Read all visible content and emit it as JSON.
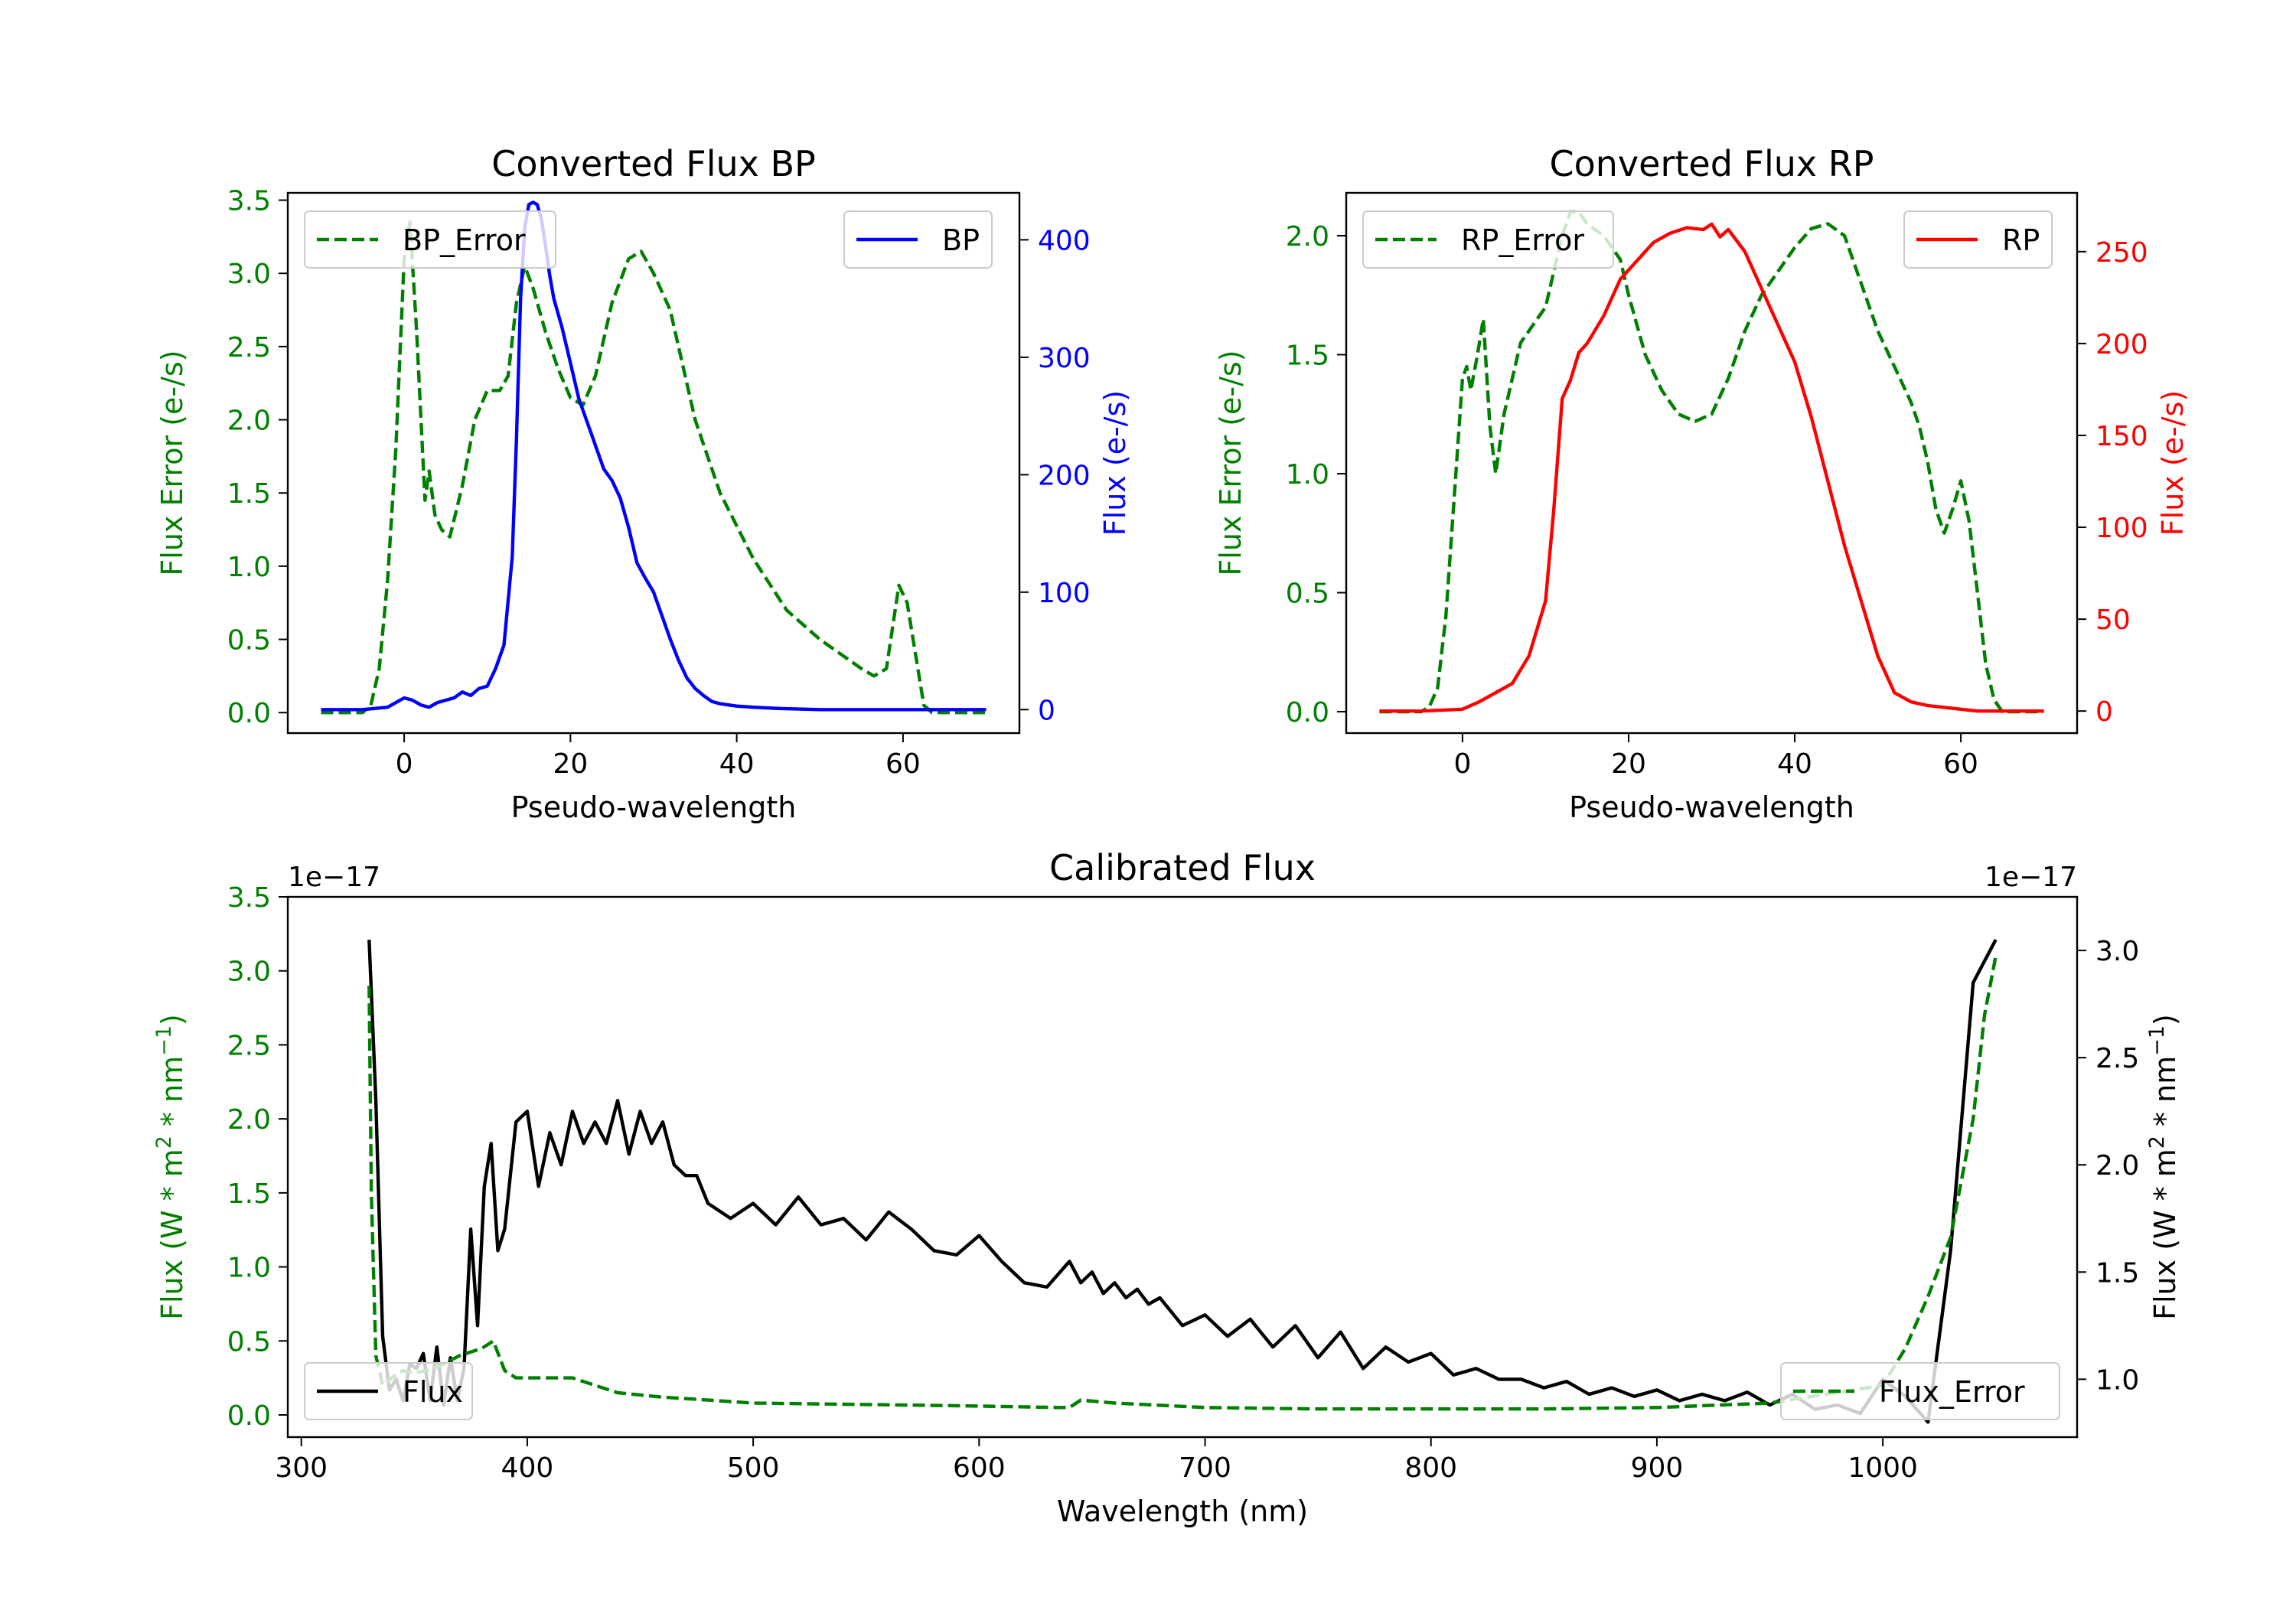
{
  "colors": {
    "error": "#008000",
    "bp": "#0000ff",
    "rp": "#ff0000",
    "flux": "#000000"
  },
  "chart_data": [
    {
      "id": "bp",
      "type": "line",
      "title": "Converted Flux BP",
      "xlabel": "Pseudo-wavelength",
      "ylabel_left": "Flux Error (e-/s)",
      "ylabel_right": "Flux (e-/s)",
      "xlim": [
        -14,
        74
      ],
      "x_ticks": [
        0,
        20,
        40,
        60
      ],
      "ylim_left": [
        -0.14,
        3.55
      ],
      "ylim_right": [
        -20,
        440
      ],
      "y_ticks_left": [
        "0.0",
        "0.5",
        "1.0",
        "1.5",
        "2.0",
        "2.5",
        "3.0",
        "3.5"
      ],
      "y_ticks_right": [
        0,
        100,
        200,
        300,
        400
      ],
      "legend_left": "BP_Error",
      "legend_right": "BP",
      "series": [
        {
          "name": "BP_Error",
          "axis": "left",
          "style": "dashed",
          "color_key": "error",
          "x": [
            -10,
            -5,
            -4,
            -3,
            -2,
            -1,
            0,
            0.7,
            1.5,
            2.5,
            3,
            3.7,
            4.5,
            5.5,
            7,
            8.5,
            10,
            11.5,
            12.5,
            13.5,
            14.5,
            15.5,
            17,
            18.5,
            20,
            21.5,
            23,
            25,
            27,
            28.5,
            30,
            32,
            35,
            38,
            42,
            46,
            50,
            55,
            56.5,
            58,
            59.5,
            60.5,
            61.5,
            62.5,
            63.5,
            65,
            70
          ],
          "y": [
            0,
            0,
            0.05,
            0.3,
            0.9,
            1.8,
            3.1,
            3.35,
            2.6,
            1.45,
            1.65,
            1.35,
            1.25,
            1.2,
            1.55,
            2.0,
            2.2,
            2.2,
            2.3,
            2.8,
            3.05,
            2.9,
            2.6,
            2.35,
            2.15,
            2.1,
            2.3,
            2.8,
            3.1,
            3.15,
            3.0,
            2.75,
            2.0,
            1.5,
            1.05,
            0.7,
            0.5,
            0.3,
            0.25,
            0.3,
            0.87,
            0.75,
            0.4,
            0.05,
            0,
            0,
            0
          ]
        },
        {
          "name": "BP",
          "axis": "right",
          "style": "solid",
          "color_key": "bp",
          "x": [
            -10,
            -5,
            -2,
            0,
            1,
            2,
            3,
            4,
            5,
            6,
            7,
            8,
            9,
            10,
            11,
            12,
            13,
            13.5,
            14,
            14.5,
            15,
            15.5,
            16,
            16.5,
            17,
            17.5,
            18,
            19,
            20,
            21,
            22,
            23,
            24,
            25,
            26,
            27,
            28,
            29,
            30,
            31,
            32,
            33,
            34,
            35,
            36,
            37,
            38,
            39,
            40,
            42,
            45,
            50,
            55,
            60,
            65,
            70
          ],
          "y": [
            0,
            0,
            2,
            10,
            8,
            4,
            2,
            6,
            8,
            10,
            15,
            12,
            18,
            20,
            35,
            55,
            130,
            230,
            350,
            410,
            430,
            432,
            430,
            418,
            395,
            370,
            350,
            325,
            295,
            265,
            245,
            225,
            205,
            195,
            180,
            155,
            125,
            112,
            100,
            80,
            60,
            42,
            27,
            18,
            12,
            7,
            5,
            4,
            3,
            2,
            1,
            0,
            0,
            0,
            0,
            0
          ]
        }
      ]
    },
    {
      "id": "rp",
      "type": "line",
      "title": "Converted Flux RP",
      "xlabel": "Pseudo-wavelength",
      "ylabel_left": "Flux Error (e-/s)",
      "ylabel_right": "Flux (e-/s)",
      "xlim": [
        -14,
        74
      ],
      "x_ticks": [
        0,
        20,
        40,
        60
      ],
      "ylim_left": [
        -0.09,
        2.18
      ],
      "ylim_right": [
        -12,
        282
      ],
      "y_ticks_left": [
        "0.0",
        "0.5",
        "1.0",
        "1.5",
        "2.0"
      ],
      "y_ticks_right": [
        0,
        50,
        100,
        150,
        200,
        250
      ],
      "legend_left": "RP_Error",
      "legend_right": "RP",
      "series": [
        {
          "name": "RP_Error",
          "axis": "left",
          "style": "dashed",
          "color_key": "error",
          "x": [
            -10,
            -5,
            -4,
            -3,
            -2,
            -1,
            0,
            0.5,
            1,
            1.8,
            2.5,
            3.3,
            4,
            5,
            6,
            7,
            8,
            9,
            10,
            11,
            12,
            13,
            14,
            15,
            17,
            19,
            20,
            22,
            24,
            26,
            28,
            30,
            32,
            34,
            36,
            38,
            40,
            42,
            44,
            46,
            48,
            50,
            52,
            54,
            55,
            56,
            57,
            58,
            59,
            60,
            61,
            62,
            63,
            64,
            65,
            70
          ],
          "y": [
            0,
            0,
            0.02,
            0.1,
            0.4,
            0.9,
            1.4,
            1.45,
            1.35,
            1.5,
            1.65,
            1.2,
            1.0,
            1.25,
            1.4,
            1.55,
            1.6,
            1.65,
            1.7,
            1.85,
            2.0,
            2.1,
            2.1,
            2.05,
            2.0,
            1.9,
            1.75,
            1.5,
            1.35,
            1.25,
            1.22,
            1.25,
            1.4,
            1.6,
            1.75,
            1.85,
            1.95,
            2.03,
            2.05,
            2.0,
            1.8,
            1.6,
            1.45,
            1.3,
            1.2,
            1.05,
            0.85,
            0.75,
            0.85,
            0.97,
            0.8,
            0.5,
            0.2,
            0.05,
            0,
            0
          ]
        },
        {
          "name": "RP",
          "axis": "right",
          "style": "solid",
          "color_key": "rp",
          "x": [
            -10,
            -5,
            0,
            2,
            4,
            6,
            8,
            10,
            11,
            12,
            13,
            14,
            15,
            17,
            19,
            21,
            23,
            25,
            27,
            29,
            30,
            31,
            32,
            34,
            36,
            38,
            40,
            42,
            44,
            46,
            48,
            50,
            52,
            54,
            56,
            58,
            60,
            62,
            65,
            70
          ],
          "y": [
            0,
            0,
            1,
            5,
            10,
            15,
            30,
            60,
            110,
            170,
            180,
            195,
            200,
            215,
            235,
            245,
            255,
            260,
            263,
            262,
            265,
            258,
            262,
            250,
            230,
            210,
            190,
            160,
            125,
            90,
            60,
            30,
            10,
            5,
            3,
            2,
            1,
            0,
            0,
            0
          ]
        }
      ]
    },
    {
      "id": "calibrated",
      "type": "line",
      "title": "Calibrated Flux",
      "xlabel": "Wavelength (nm)",
      "ylabel_left": "Flux (W * m",
      "ylabel_right": "Flux (W * m",
      "ylabel_unit_mid": " * nm",
      "ylabel_sup": "2",
      "ylabel_sup2": "−1",
      "offset_text": "1e−17",
      "xlim": [
        294,
        1086
      ],
      "x_ticks": [
        300,
        400,
        500,
        600,
        700,
        800,
        900,
        1000
      ],
      "ylim_left": [
        -0.15,
        3.5
      ],
      "ylim_right": [
        0.73,
        3.25
      ],
      "y_ticks_left": [
        "0.0",
        "0.5",
        "1.0",
        "1.5",
        "2.0",
        "2.5",
        "3.0",
        "3.5"
      ],
      "y_ticks_right": [
        "1.0",
        "1.5",
        "2.0",
        "2.5",
        "3.0"
      ],
      "legend_left": "Flux",
      "legend_right": "Flux_Error",
      "series": [
        {
          "name": "Flux",
          "axis": "right",
          "style": "solid",
          "color_key": "flux",
          "x": [
            330,
            333,
            336,
            339,
            342,
            345,
            348,
            351,
            354,
            357,
            360,
            363,
            366,
            369,
            372,
            375,
            378,
            381,
            384,
            387,
            390,
            395,
            400,
            405,
            410,
            415,
            420,
            425,
            430,
            435,
            440,
            445,
            450,
            455,
            460,
            465,
            470,
            475,
            480,
            490,
            500,
            510,
            520,
            530,
            540,
            550,
            560,
            570,
            580,
            590,
            600,
            610,
            620,
            630,
            640,
            645,
            650,
            655,
            660,
            665,
            670,
            675,
            680,
            690,
            700,
            710,
            720,
            730,
            740,
            750,
            760,
            770,
            780,
            790,
            800,
            810,
            820,
            830,
            840,
            850,
            860,
            870,
            880,
            890,
            900,
            910,
            920,
            930,
            940,
            950,
            960,
            970,
            980,
            990,
            1000,
            1010,
            1020,
            1030,
            1040,
            1050
          ],
          "y": [
            3.05,
            2.3,
            1.2,
            0.95,
            1.0,
            0.9,
            1.07,
            1.05,
            1.12,
            0.9,
            1.15,
            0.88,
            1.1,
            0.9,
            1.05,
            1.7,
            1.25,
            1.9,
            2.1,
            1.6,
            1.7,
            2.2,
            2.25,
            1.9,
            2.15,
            2.0,
            2.25,
            2.1,
            2.2,
            2.1,
            2.3,
            2.05,
            2.25,
            2.1,
            2.2,
            2.0,
            1.95,
            1.95,
            1.82,
            1.75,
            1.82,
            1.72,
            1.85,
            1.72,
            1.75,
            1.65,
            1.78,
            1.7,
            1.6,
            1.58,
            1.67,
            1.55,
            1.45,
            1.43,
            1.55,
            1.45,
            1.5,
            1.4,
            1.45,
            1.38,
            1.42,
            1.35,
            1.38,
            1.25,
            1.3,
            1.2,
            1.28,
            1.15,
            1.25,
            1.1,
            1.22,
            1.05,
            1.15,
            1.08,
            1.12,
            1.02,
            1.05,
            1.0,
            1.0,
            0.96,
            0.99,
            0.93,
            0.96,
            0.92,
            0.95,
            0.9,
            0.93,
            0.9,
            0.94,
            0.88,
            0.93,
            0.86,
            0.88,
            0.84,
            1.0,
            0.92,
            0.8,
            1.6,
            2.85,
            3.05
          ]
        },
        {
          "name": "Flux_Error",
          "axis": "left",
          "style": "dashed",
          "color_key": "error",
          "x": [
            330,
            331,
            333,
            336,
            340,
            345,
            350,
            360,
            370,
            380,
            385,
            390,
            395,
            400,
            420,
            440,
            460,
            480,
            500,
            550,
            600,
            635,
            640,
            645,
            660,
            700,
            750,
            800,
            850,
            900,
            950,
            1000,
            1010,
            1020,
            1030,
            1040,
            1045,
            1050
          ],
          "y": [
            2.9,
            1.5,
            0.4,
            0.2,
            0.25,
            0.3,
            0.28,
            0.32,
            0.4,
            0.45,
            0.5,
            0.3,
            0.25,
            0.25,
            0.25,
            0.15,
            0.12,
            0.1,
            0.08,
            0.07,
            0.06,
            0.05,
            0.05,
            0.1,
            0.08,
            0.05,
            0.04,
            0.04,
            0.04,
            0.05,
            0.08,
            0.2,
            0.45,
            0.8,
            1.2,
            2.0,
            2.7,
            3.1
          ]
        }
      ]
    }
  ]
}
